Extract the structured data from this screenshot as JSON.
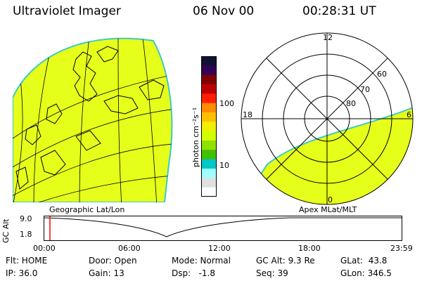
{
  "header": {
    "title": "Ultraviolet Imager",
    "date": "06 Nov 00",
    "time": "00:28:31 UT"
  },
  "colorbar": {
    "unit_label": "photon cm⁻²s⁻¹",
    "ticks": [
      "100",
      "10"
    ],
    "colors": [
      "#111133",
      "#330055",
      "#800000",
      "#c00000",
      "#ff2000",
      "#ff8c00",
      "#ffc000",
      "#f0f000",
      "#d0ff00",
      "#90e000",
      "#40c000",
      "#00c8c8",
      "#a0ffff",
      "#e0e0e0",
      "#ffffff"
    ]
  },
  "left_map": {
    "label": "Geographic Lat/Lon",
    "fill_color": "#e6ff1a"
  },
  "polar_plot": {
    "label": "Apex MLat/MLT",
    "mlt_labels": {
      "top": "12",
      "left": "18",
      "right": "6",
      "bottom": "0"
    },
    "lat_labels": [
      "60",
      "70",
      "80"
    ],
    "fill_color": "#e6ff1a"
  },
  "altitude_plot": {
    "ylabel": "GC Alt",
    "ymax": "9.0",
    "ymin": "1.8",
    "time_ticks": [
      "00:00",
      "06:00",
      "12:00",
      "18:00",
      "23:59"
    ],
    "current_marker_color": "#ff0000"
  },
  "info": {
    "flt": "Flt: HOME",
    "ip": "IP: 36.0",
    "door": "Door: Open",
    "gain": "Gain: 13",
    "mode": "Mode: Normal",
    "dsp": "Dsp:   -1.8",
    "gcalt": "GC Alt: 9.3 Re",
    "seq": "Seq: 39",
    "glat": "GLat:  43.8",
    "glon": "GLon: 346.5"
  }
}
